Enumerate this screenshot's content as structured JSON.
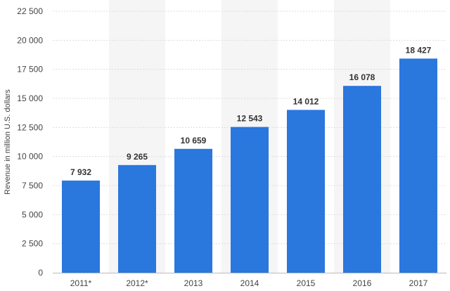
{
  "chart_data": {
    "type": "bar",
    "ylabel": "Revenue in million U.S. dollars",
    "categories": [
      "2011*",
      "2012*",
      "2013",
      "2014",
      "2015",
      "2016",
      "2017"
    ],
    "values": [
      7932,
      9265,
      10659,
      12543,
      14012,
      16078,
      18427
    ],
    "value_labels": [
      "7 932",
      "9 265",
      "10 659",
      "12 543",
      "14 012",
      "16 078",
      "18 427"
    ],
    "ylim": [
      0,
      22500
    ],
    "yticks": [
      0,
      2500,
      5000,
      7500,
      10000,
      12500,
      15000,
      17500,
      20000,
      22500
    ],
    "ytick_labels": [
      "0",
      "2 500",
      "5 000",
      "7 500",
      "10 000",
      "12 500",
      "15 000",
      "17 500",
      "20 000",
      "22 500"
    ],
    "grid": true,
    "bar_color": "#2a77dd",
    "alternate_band_color": "#f5f5f5",
    "grid_color": "#dcdcdc"
  }
}
